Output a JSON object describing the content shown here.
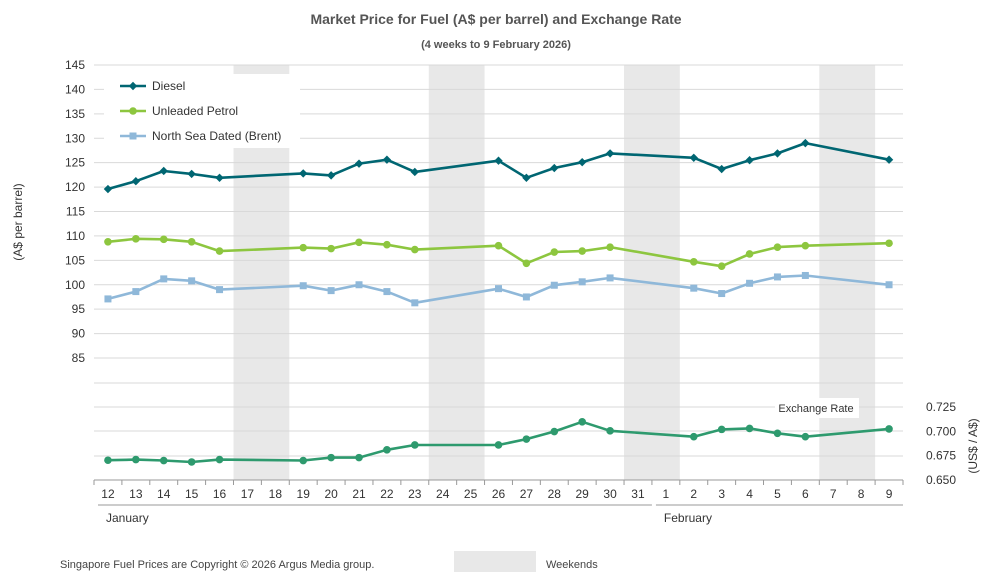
{
  "chart_data": {
    "type": "line",
    "title": "Market Price for Fuel (A$  per barrel) and Exchange Rate",
    "subtitle": "(4 weeks to 9 February 2026)",
    "ylabel": "(A$ per barrel)",
    "y2label": "(US$ / A$)",
    "ylim": [
      85,
      145
    ],
    "yticks": [
      85,
      90,
      95,
      100,
      105,
      110,
      115,
      120,
      125,
      130,
      135,
      140,
      145
    ],
    "y2lim": [
      0.65,
      0.725
    ],
    "y2ticks": [
      "0.650",
      "0.675",
      "0.700",
      "0.725"
    ],
    "categories": [
      "12",
      "13",
      "14",
      "15",
      "16",
      "17",
      "18",
      "19",
      "20",
      "21",
      "22",
      "23",
      "24",
      "25",
      "26",
      "27",
      "28",
      "29",
      "30",
      "31",
      "1",
      "2",
      "3",
      "4",
      "5",
      "6",
      "7",
      "8",
      "9"
    ],
    "months": [
      {
        "label": "January",
        "start": "12",
        "end": "31"
      },
      {
        "label": "February",
        "start": "1",
        "end": "9"
      }
    ],
    "weekend_categories": [
      [
        "17",
        "18"
      ],
      [
        "24",
        "25"
      ],
      [
        "31",
        "1"
      ],
      [
        "7",
        "8"
      ]
    ],
    "grid": true,
    "legend_position": "top-left",
    "series": [
      {
        "name": "Diesel",
        "axis": "left",
        "color": "#006672",
        "marker": "diamond",
        "values": [
          119.6,
          121.2,
          123.3,
          122.7,
          121.9,
          null,
          null,
          122.8,
          122.4,
          124.8,
          125.6,
          123.1,
          null,
          null,
          125.4,
          121.9,
          123.9,
          125.1,
          126.9,
          null,
          null,
          126.0,
          123.7,
          125.5,
          126.9,
          129.0,
          null,
          null,
          125.6
        ]
      },
      {
        "name": "Unleaded Petrol",
        "axis": "left",
        "color": "#8dc63f",
        "marker": "circle",
        "values": [
          108.8,
          109.4,
          109.3,
          108.8,
          106.9,
          null,
          null,
          107.6,
          107.4,
          108.7,
          108.2,
          107.2,
          null,
          null,
          108.0,
          104.4,
          106.7,
          106.9,
          107.7,
          null,
          null,
          104.7,
          103.8,
          106.3,
          107.7,
          108.0,
          null,
          null,
          108.5
        ]
      },
      {
        "name": "North Sea Dated (Brent)",
        "axis": "left",
        "color": "#8fb8d9",
        "marker": "square",
        "values": [
          97.1,
          98.6,
          101.2,
          100.8,
          99.0,
          null,
          null,
          99.8,
          98.8,
          100.0,
          98.6,
          96.3,
          null,
          null,
          99.2,
          97.5,
          99.9,
          100.6,
          101.4,
          null,
          null,
          99.3,
          98.2,
          100.3,
          101.6,
          101.9,
          null,
          null,
          100.0
        ]
      },
      {
        "axis": "right",
        "color": "#2e9a6e",
        "marker": "circle",
        "label": "Exchange Rate",
        "values": [
          0.6703,
          0.671,
          0.67,
          0.6685,
          0.671,
          null,
          null,
          0.67,
          0.673,
          0.673,
          0.681,
          0.686,
          null,
          null,
          0.686,
          0.692,
          0.6998,
          0.7098,
          0.7005,
          null,
          null,
          0.6945,
          0.702,
          0.703,
          0.698,
          0.6945,
          null,
          null,
          0.7025
        ]
      }
    ],
    "footer_note": "Singapore Fuel Prices are Copyright © 2026 Argus Media group.",
    "weekend_legend_label": "Weekends"
  }
}
